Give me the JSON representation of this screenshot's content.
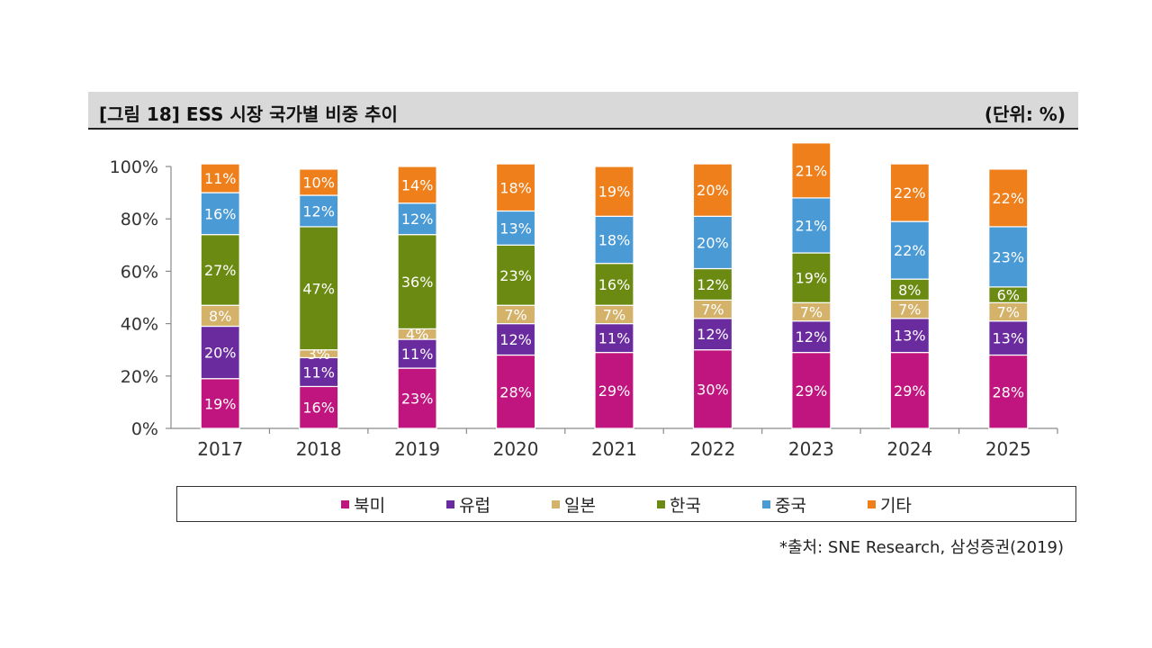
{
  "header": {
    "title": "[그림 18] ESS 시장 국가별 비중 추이",
    "unit": "(단위: %)"
  },
  "source": "*출처: SNE Research, 삼성증권(2019)",
  "chart_data": {
    "type": "bar",
    "stacked": true,
    "categories": [
      "2017",
      "2018",
      "2019",
      "2020",
      "2021",
      "2022",
      "2023",
      "2024",
      "2025"
    ],
    "ylim": [
      0,
      100
    ],
    "yticks": [
      "0%",
      "20%",
      "40%",
      "60%",
      "80%",
      "100%"
    ],
    "ytick_values": [
      0,
      20,
      40,
      60,
      80,
      100
    ],
    "legend_position": "bottom",
    "series": [
      {
        "name": "북미",
        "color": "#c0157f",
        "values": [
          19,
          16,
          23,
          28,
          29,
          30,
          29,
          29,
          28
        ],
        "labels": [
          "19%",
          "16%",
          "23%",
          "28%",
          "29%",
          "30%",
          "29%",
          "29%",
          "28%"
        ]
      },
      {
        "name": "유럽",
        "color": "#6a2b9f",
        "values": [
          20,
          11,
          11,
          12,
          11,
          12,
          12,
          13,
          13
        ],
        "labels": [
          "20%",
          "11%",
          "11%",
          "12%",
          "11%",
          "12%",
          "12%",
          "13%",
          "13%"
        ]
      },
      {
        "name": "일본",
        "color": "#d4b26a",
        "values": [
          8,
          3,
          4,
          7,
          7,
          7,
          7,
          7,
          7
        ],
        "labels": [
          "8%",
          "3%",
          "4%",
          "7%",
          "7%",
          "7%",
          "7%",
          "7%",
          "7%"
        ]
      },
      {
        "name": "한국",
        "color": "#6b8a12",
        "values": [
          27,
          47,
          36,
          23,
          16,
          12,
          19,
          8,
          6
        ],
        "labels": [
          "27%",
          "47%",
          "36%",
          "23%",
          "16%",
          "12%",
          "19%",
          "8%",
          "6%"
        ]
      },
      {
        "name": "중국",
        "color": "#4a9ad6",
        "values": [
          16,
          12,
          12,
          13,
          18,
          20,
          21,
          22,
          23
        ],
        "labels": [
          "16%",
          "12%",
          "12%",
          "13%",
          "18%",
          "20%",
          "21%",
          "22%",
          "23%"
        ]
      },
      {
        "name": "기타",
        "color": "#ef7f1a",
        "values": [
          11,
          10,
          14,
          18,
          19,
          20,
          21,
          22,
          22
        ],
        "labels": [
          "11%",
          "10%",
          "14%",
          "18%",
          "19%",
          "20%",
          "21%",
          "22%",
          "22%"
        ]
      }
    ]
  }
}
